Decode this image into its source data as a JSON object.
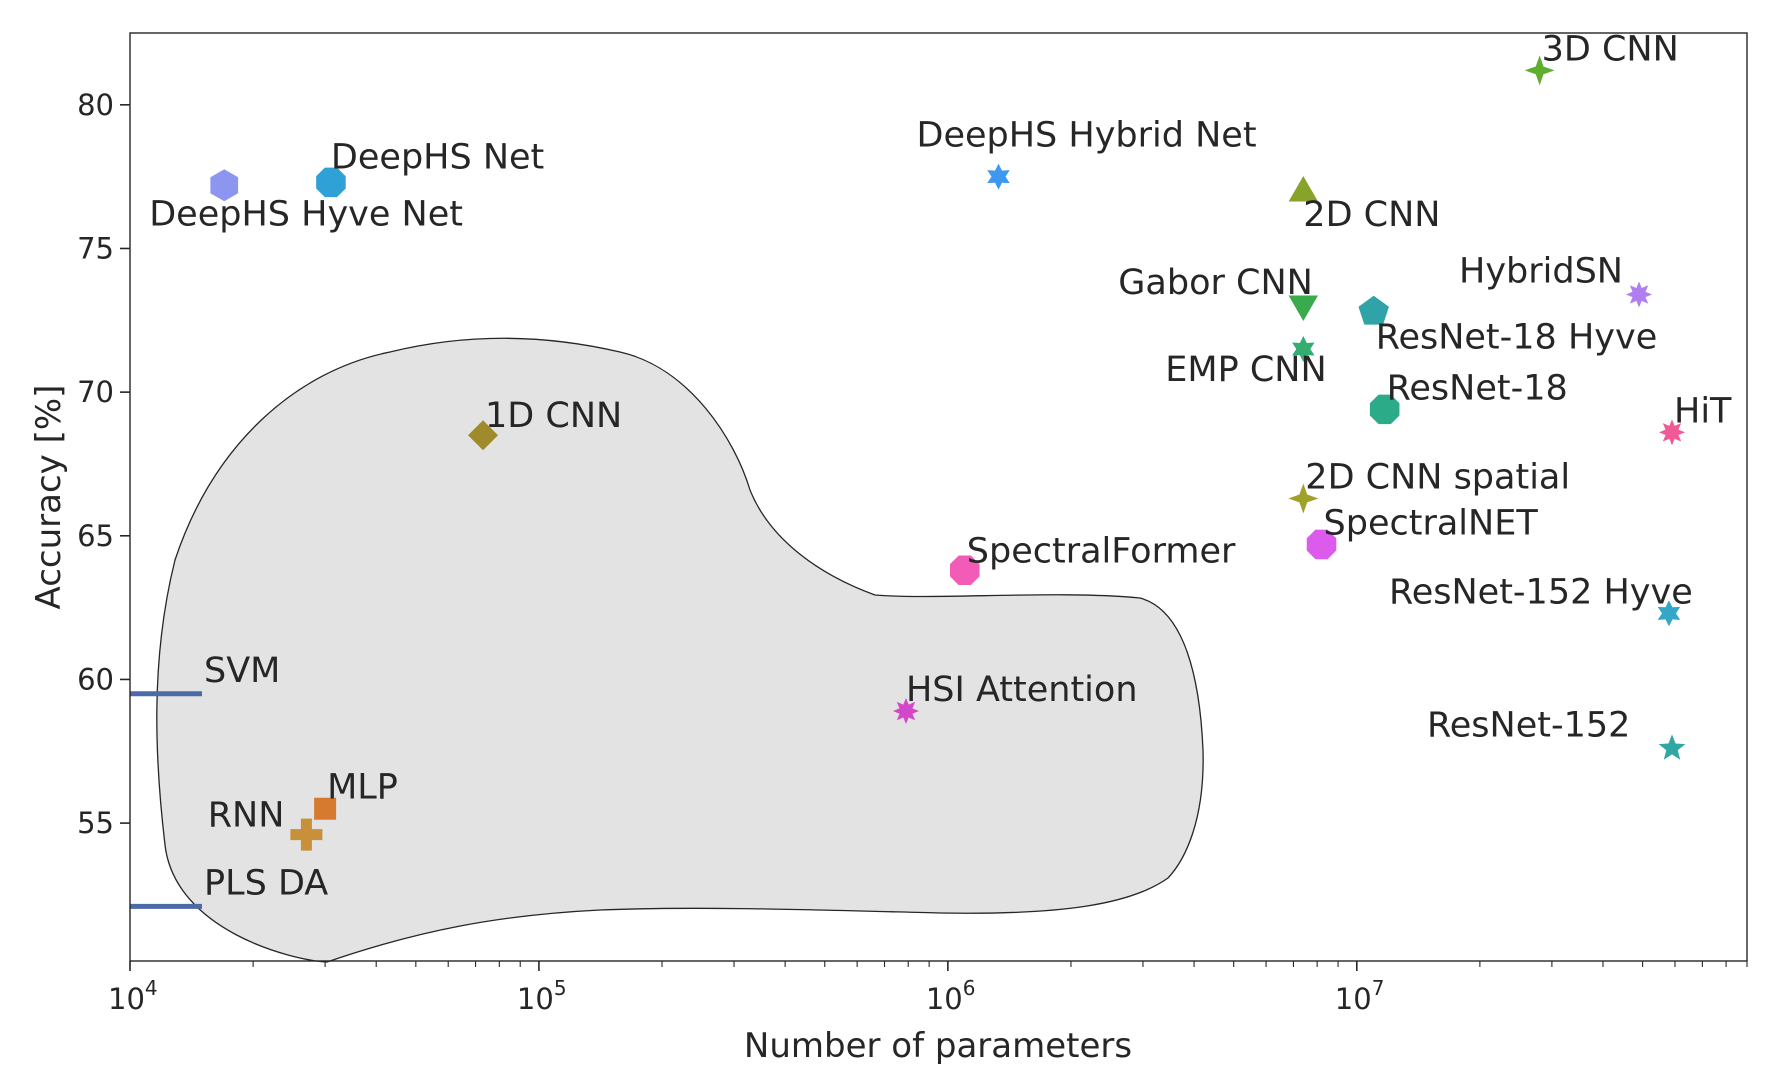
{
  "chart_data": {
    "type": "scatter",
    "xlabel": "Number of parameters",
    "ylabel": "Accuracy [%]",
    "xscale": "log",
    "xlim": [
      10000,
      90000000
    ],
    "ylim": [
      50.2,
      82.5
    ],
    "xticks": [
      {
        "value": 10000,
        "base": "10",
        "exp": "4"
      },
      {
        "value": 100000,
        "base": "10",
        "exp": "5"
      },
      {
        "value": 1000000,
        "base": "10",
        "exp": "6"
      },
      {
        "value": 10000000,
        "base": "10",
        "exp": "7"
      }
    ],
    "yticks": [
      {
        "value": 55,
        "label": "55"
      },
      {
        "value": 60,
        "label": "60"
      },
      {
        "value": 65,
        "label": "65"
      },
      {
        "value": 70,
        "label": "70"
      },
      {
        "value": 75,
        "label": "75"
      },
      {
        "value": 80,
        "label": "80"
      }
    ],
    "grid": false,
    "baselines": [
      {
        "label": "SVM",
        "accuracy": 59.5,
        "color": "#4c6aa8"
      },
      {
        "label": "PLS DA",
        "accuracy": 52.1,
        "color": "#4c6aa8"
      }
    ],
    "points": [
      {
        "label": "DeepHS Hyve Net",
        "params": 17000,
        "accuracy": 77.2,
        "marker": "hexagon",
        "color": "#8c96f0"
      },
      {
        "label": "DeepHS Net",
        "params": 31000,
        "accuracy": 77.3,
        "marker": "octagon",
        "color": "#2fa1d6"
      },
      {
        "label": "1D CNN",
        "params": 73000,
        "accuracy": 68.5,
        "marker": "diamond",
        "color": "#a08b2c"
      },
      {
        "label": "MLP",
        "params": 30000,
        "accuracy": 55.5,
        "marker": "square",
        "color": "#d67a2f"
      },
      {
        "label": "RNN",
        "params": 27000,
        "accuracy": 54.6,
        "marker": "plus",
        "color": "#c89038"
      },
      {
        "label": "HSI Attention",
        "params": 790000,
        "accuracy": 58.9,
        "marker": "star8",
        "color": "#d348c8"
      },
      {
        "label": "SpectralFormer",
        "params": 1100000,
        "accuracy": 63.8,
        "marker": "octagon",
        "color": "#f25cb7"
      },
      {
        "label": "DeepHS Hybrid Net",
        "params": 1330000,
        "accuracy": 77.5,
        "marker": "star6",
        "color": "#3e97f0"
      },
      {
        "label": "2D CNN",
        "params": 7400000,
        "accuracy": 77.0,
        "marker": "triangle-up",
        "color": "#88a32a"
      },
      {
        "label": "Gabor CNN",
        "params": 7400000,
        "accuracy": 73.0,
        "marker": "triangle-down",
        "color": "#3aaa4f"
      },
      {
        "label": "EMP CNN",
        "params": 7400000,
        "accuracy": 71.5,
        "marker": "star6",
        "color": "#33ad70"
      },
      {
        "label": "2D CNN spatial",
        "params": 7400000,
        "accuracy": 66.3,
        "marker": "star4",
        "color": "#9fa12b"
      },
      {
        "label": "SpectralNET",
        "params": 8200000,
        "accuracy": 64.7,
        "marker": "octagon",
        "color": "#dc5bec"
      },
      {
        "label": "ResNet-18 Hyve",
        "params": 11000000,
        "accuracy": 72.8,
        "marker": "pentagon",
        "color": "#30a3a8"
      },
      {
        "label": "ResNet-18",
        "params": 11700000,
        "accuracy": 69.4,
        "marker": "octagon",
        "color": "#2bab87"
      },
      {
        "label": "3D CNN",
        "params": 28000000,
        "accuracy": 81.2,
        "marker": "star4",
        "color": "#5fae2d"
      },
      {
        "label": "HybridSN",
        "params": 49000000,
        "accuracy": 73.4,
        "marker": "star8",
        "color": "#b07ef0"
      },
      {
        "label": "HiT",
        "params": 59000000,
        "accuracy": 68.6,
        "marker": "star8",
        "color": "#f05a96"
      },
      {
        "label": "ResNet-152 Hyve",
        "params": 58000000,
        "accuracy": 62.3,
        "marker": "star6",
        "color": "#34a6c8"
      },
      {
        "label": "ResNet-152",
        "params": 59000000,
        "accuracy": 57.6,
        "marker": "star5",
        "color": "#2fa7a2"
      }
    ],
    "region": {
      "fill": "#e3e3e3",
      "stroke": "#262626"
    }
  }
}
